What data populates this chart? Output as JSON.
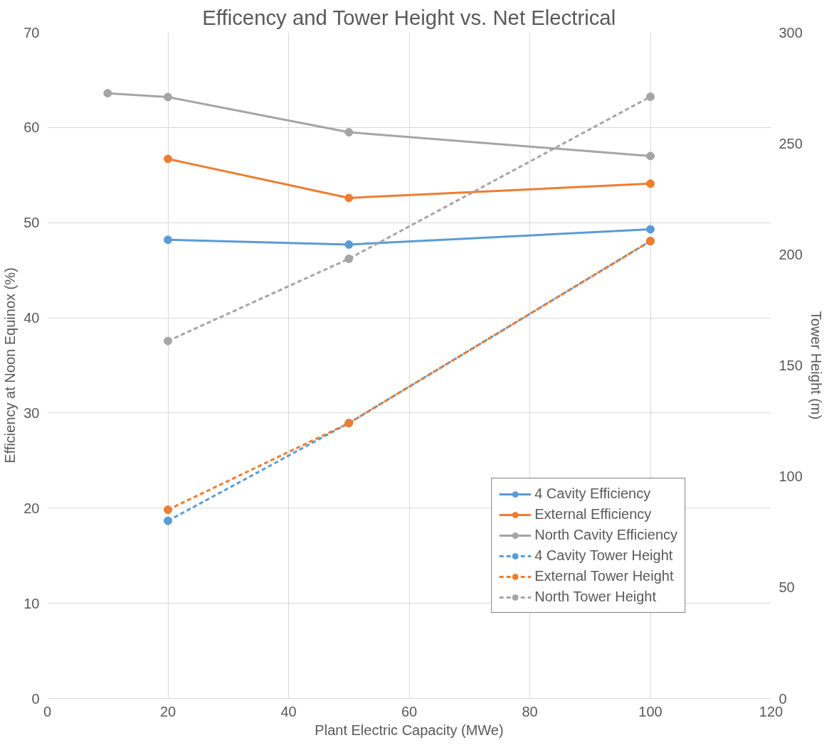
{
  "chart_data": {
    "type": "line",
    "title": "Efficency and Tower Height vs. Net Electrical",
    "xlabel": "Plant Electric Capacity (MWe)",
    "ylabel": "Efficiency at Noon Equinox (%)",
    "y2label": "Tower Height (m)",
    "xlim": [
      0,
      120
    ],
    "xticks": [
      0,
      20,
      40,
      60,
      80,
      100,
      120
    ],
    "ylim": [
      0,
      70
    ],
    "yticks": [
      0,
      10,
      20,
      30,
      40,
      50,
      60,
      70
    ],
    "y2lim": [
      0,
      300
    ],
    "y2ticks": [
      0,
      50,
      100,
      150,
      200,
      250,
      300
    ],
    "grid": true,
    "legend": "bottom right",
    "marker": "circle",
    "series": [
      {
        "name": "4 Cavity Efficiency",
        "color": "#5b9bd5",
        "x": [
          20,
          50,
          100
        ],
        "values": [
          48.2,
          47.7,
          49.3
        ],
        "line_style": "solid"
      },
      {
        "name": "External Efficiency",
        "color": "#ed7d31",
        "x": [
          20,
          50,
          100
        ],
        "values": [
          56.7,
          52.6,
          54.1
        ],
        "line_style": "solid"
      },
      {
        "name": "North Cavity Efficiency",
        "color": "#a5a5a5",
        "x": [
          10,
          20,
          50,
          100
        ],
        "values": [
          63.6,
          63.2,
          59.5,
          57.0
        ],
        "line_style": "solid"
      },
      {
        "name": "4 Cavity Tower Height",
        "color": "#5b9bd5",
        "x": [
          20,
          50,
          100
        ],
        "values": [
          80,
          124,
          206
        ],
        "line_style": "dashed",
        "axis": "y2"
      },
      {
        "name": "External Tower Height",
        "color": "#ed7d31",
        "x": [
          20,
          50,
          100
        ],
        "values": [
          85,
          124,
          206
        ],
        "line_style": "dashed",
        "axis": "y2"
      },
      {
        "name": "North Tower Height",
        "color": "#a5a5a5",
        "x": [
          20,
          50,
          100
        ],
        "values": [
          161,
          198,
          271
        ],
        "line_style": "dashed",
        "axis": "y2"
      }
    ]
  }
}
